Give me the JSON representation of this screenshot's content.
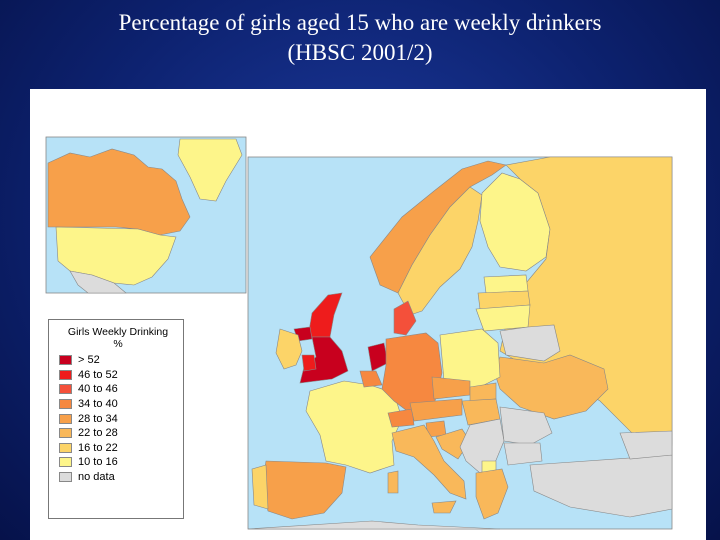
{
  "title": {
    "line1": "Percentage of girls aged 15 who are weekly drinkers",
    "line2": "(HBSC 2001/2)"
  },
  "legend": {
    "title": "Girls Weekly Drinking",
    "unit": "%",
    "items": [
      {
        "label": "> 52",
        "color": "#c8001e"
      },
      {
        "label": "46 to 52",
        "color": "#ee1c1c"
      },
      {
        "label": "40 to 46",
        "color": "#f4503a"
      },
      {
        "label": "34 to 40",
        "color": "#f68840"
      },
      {
        "label": "28 to 34",
        "color": "#f7a04a"
      },
      {
        "label": "22 to 28",
        "color": "#f9b85a"
      },
      {
        "label": "16 to 22",
        "color": "#fcd468"
      },
      {
        "label": "10 to 16",
        "color": "#fdf58a"
      },
      {
        "label": "no data",
        "color": "#dcdcdc"
      }
    ]
  },
  "colors": {
    "sea": "#b7e2f7",
    "border": "#888888"
  }
}
